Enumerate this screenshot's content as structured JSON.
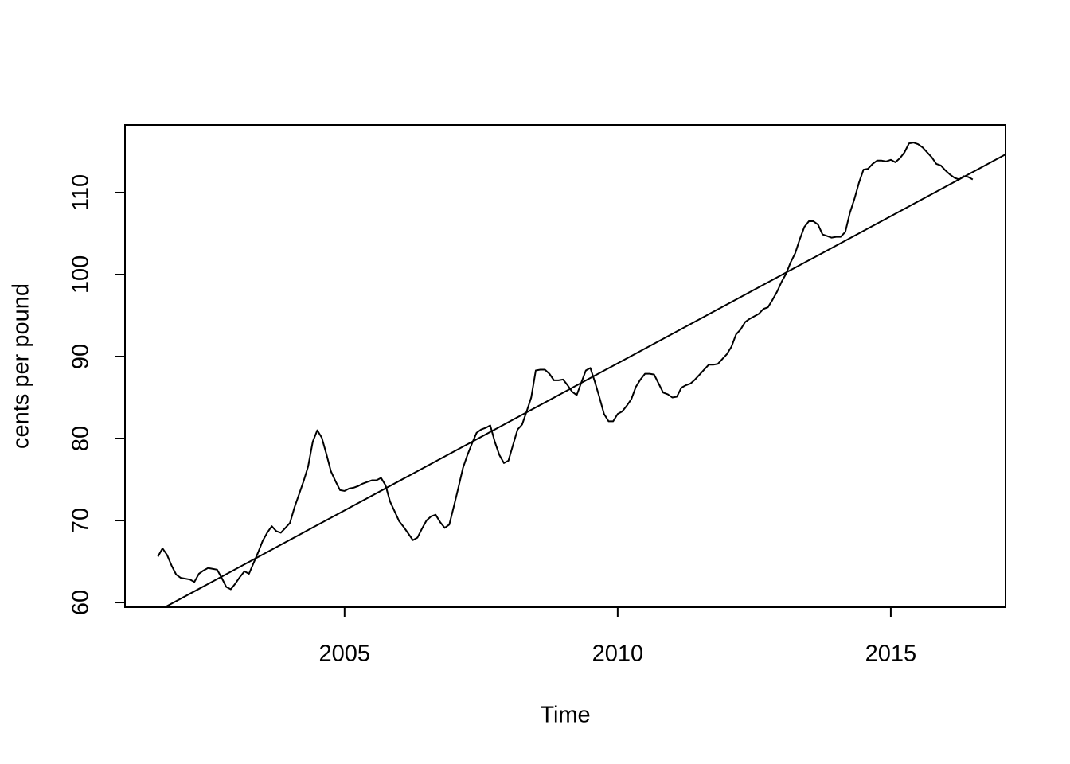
{
  "chart_data": {
    "type": "line",
    "xlabel": "Time",
    "ylabel": "cents per pound",
    "x": [
      2001.583,
      2001.667,
      2001.75,
      2001.833,
      2001.917,
      2002,
      2002.083,
      2002.167,
      2002.25,
      2002.333,
      2002.417,
      2002.5,
      2002.583,
      2002.667,
      2002.75,
      2002.833,
      2002.917,
      2003,
      2003.083,
      2003.167,
      2003.25,
      2003.333,
      2003.417,
      2003.5,
      2003.583,
      2003.667,
      2003.75,
      2003.833,
      2003.917,
      2004,
      2004.083,
      2004.167,
      2004.25,
      2004.333,
      2004.417,
      2004.5,
      2004.583,
      2004.667,
      2004.75,
      2004.833,
      2004.917,
      2005,
      2005.083,
      2005.167,
      2005.25,
      2005.333,
      2005.417,
      2005.5,
      2005.583,
      2005.667,
      2005.75,
      2005.833,
      2005.917,
      2006,
      2006.083,
      2006.167,
      2006.25,
      2006.333,
      2006.417,
      2006.5,
      2006.583,
      2006.667,
      2006.75,
      2006.833,
      2006.917,
      2007,
      2007.083,
      2007.167,
      2007.25,
      2007.333,
      2007.417,
      2007.5,
      2007.583,
      2007.667,
      2007.75,
      2007.833,
      2007.917,
      2008,
      2008.083,
      2008.167,
      2008.25,
      2008.333,
      2008.417,
      2008.5,
      2008.583,
      2008.667,
      2008.75,
      2008.833,
      2008.917,
      2009,
      2009.083,
      2009.167,
      2009.25,
      2009.333,
      2009.417,
      2009.5,
      2009.583,
      2009.667,
      2009.75,
      2009.833,
      2009.917,
      2010,
      2010.083,
      2010.167,
      2010.25,
      2010.333,
      2010.417,
      2010.5,
      2010.583,
      2010.667,
      2010.75,
      2010.833,
      2010.917,
      2011,
      2011.083,
      2011.167,
      2011.25,
      2011.333,
      2011.417,
      2011.5,
      2011.583,
      2011.667,
      2011.75,
      2011.833,
      2011.917,
      2012,
      2012.083,
      2012.167,
      2012.25,
      2012.333,
      2012.417,
      2012.5,
      2012.583,
      2012.667,
      2012.75,
      2012.833,
      2012.917,
      2013,
      2013.083,
      2013.167,
      2013.25,
      2013.333,
      2013.417,
      2013.5,
      2013.583,
      2013.667,
      2013.75,
      2013.833,
      2013.917,
      2014,
      2014.083,
      2014.167,
      2014.25,
      2014.333,
      2014.417,
      2014.5,
      2014.583,
      2014.667,
      2014.75,
      2014.833,
      2014.917,
      2015,
      2015.083,
      2015.167,
      2015.25,
      2015.333,
      2015.417,
      2015.5,
      2015.583,
      2015.667,
      2015.75,
      2015.833,
      2015.917,
      2016,
      2016.083,
      2016.167,
      2016.25,
      2016.333,
      2016.417,
      2016.5
    ],
    "series": [
      {
        "color": "#000000",
        "values": [
          65.6,
          66.6,
          65.8,
          64.5,
          63.4,
          63.0,
          62.9,
          62.8,
          62.5,
          63.5,
          63.9,
          64.2,
          64.1,
          64.0,
          63.0,
          61.9,
          61.6,
          62.3,
          63.1,
          63.8,
          63.5,
          64.8,
          66.1,
          67.5,
          68.5,
          69.3,
          68.7,
          68.5,
          69.1,
          69.7,
          71.6,
          73.2,
          74.8,
          76.6,
          79.6,
          81.0,
          80.1,
          78.1,
          76.0,
          74.8,
          73.7,
          73.6,
          73.9,
          74.0,
          74.2,
          74.5,
          74.7,
          74.9,
          74.9,
          75.2,
          74.3,
          72.3,
          71.1,
          69.9,
          69.2,
          68.4,
          67.6,
          67.9,
          69.0,
          70.0,
          70.5,
          70.7,
          69.8,
          69.1,
          69.5,
          71.7,
          74.0,
          76.4,
          78.0,
          79.4,
          80.7,
          81.1,
          81.3,
          81.6,
          79.6,
          78.0,
          77.0,
          77.3,
          79.2,
          81.1,
          81.7,
          83.3,
          85.0,
          88.3,
          88.4,
          88.4,
          87.9,
          87.1,
          87.1,
          87.2,
          86.5,
          85.7,
          85.3,
          86.8,
          88.3,
          88.6,
          86.9,
          85.0,
          83.0,
          82.1,
          82.1,
          83.0,
          83.3,
          84.0,
          84.8,
          86.3,
          87.2,
          87.9,
          87.9,
          87.8,
          86.7,
          85.6,
          85.4,
          85.0,
          85.1,
          86.2,
          86.5,
          86.7,
          87.2,
          87.8,
          88.4,
          89.0,
          89.0,
          89.1,
          89.7,
          90.3,
          91.2,
          92.7,
          93.3,
          94.2,
          94.6,
          94.9,
          95.2,
          95.8,
          96.0,
          96.9,
          97.9,
          99.1,
          100.1,
          101.5,
          102.6,
          104.3,
          105.8,
          106.5,
          106.5,
          106.1,
          104.9,
          104.7,
          104.5,
          104.6,
          104.6,
          105.2,
          107.5,
          109.2,
          111.2,
          112.8,
          112.9,
          113.5,
          113.9,
          113.9,
          113.8,
          114.0,
          113.7,
          114.2,
          114.9,
          116.0,
          116.1,
          115.9,
          115.5,
          114.9,
          114.3,
          113.5,
          113.3,
          112.7,
          112.2,
          111.8,
          111.6,
          112.0,
          111.9,
          111.6
        ]
      },
      {
        "color": "#000000",
        "x": [
          2001.71,
          2017.1
        ],
        "values": [
          59.42,
          114.66
        ]
      }
    ],
    "xlim": [
      2000.98,
      2017.1
    ],
    "ylim": [
      59.42,
      118.25
    ],
    "xticks": [
      2005,
      2010,
      2015
    ],
    "yticks": [
      60,
      70,
      80,
      90,
      100,
      110
    ],
    "grid": false
  }
}
